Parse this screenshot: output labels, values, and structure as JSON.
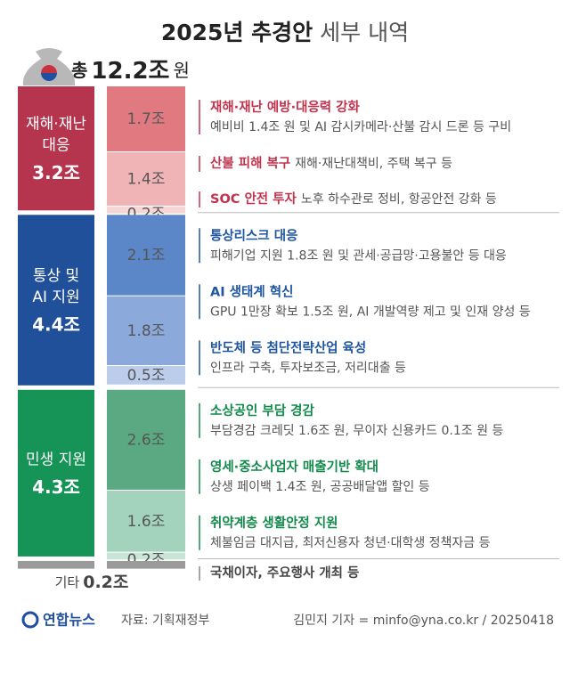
{
  "chart_data": {
    "type": "stacked_bar",
    "title": "2025년 추경안",
    "subtitle": "세부 내역",
    "total_prefix": "총",
    "total": 12.2,
    "total_label": "12.2조",
    "total_suffix": "원",
    "groups": [
      {
        "name_lines": [
          "재해·재난",
          "대응"
        ],
        "value": 3.2,
        "value_label": "3.2조",
        "color": "#b5354f",
        "text_color": "#c0334d",
        "items": [
          {
            "value": 1.7,
            "value_label": "1.7조",
            "color": "#e07a80",
            "title": "재해·재난 예방·대응력 강화",
            "detail": "예비비 1.4조 원 및 AI 감시카메라·산불 감시 드론 등 구비"
          },
          {
            "value": 1.4,
            "value_label": "1.4조",
            "color": "#f0b4b6",
            "title": "산불 피해 복구",
            "detail": "재해·재난대책비, 주택 복구 등"
          },
          {
            "value": 0.2,
            "value_label": "0.2조",
            "color": "#f7d6d6",
            "title": "SOC 안전 투자",
            "detail": "노후 하수관로 정비, 항공안전 강화 등"
          }
        ]
      },
      {
        "name_lines": [
          "통상 및",
          "AI 지원"
        ],
        "value": 4.4,
        "value_label": "4.4조",
        "color": "#21509a",
        "text_color": "#1f56a3",
        "items": [
          {
            "value": 2.1,
            "value_label": "2.1조",
            "color": "#5b86c8",
            "title": "통상리스크 대응",
            "detail": "피해기업 지원 1.8조 원 및 관세·공급망·고용불안 등 대응"
          },
          {
            "value": 1.8,
            "value_label": "1.8조",
            "color": "#8ca9dc",
            "title": "AI 생태계 혁신",
            "detail": "GPU 1만장 확보 1.5조 원, AI 개발역량 제고 및 인재 양성 등"
          },
          {
            "value": 0.5,
            "value_label": "0.5조",
            "color": "#bccdeb",
            "title": "반도체 등 첨단전략산업 육성",
            "detail": "인프라 구축, 투자보조금, 저리대출 등"
          }
        ]
      },
      {
        "name_lines": [
          "민생 지원"
        ],
        "value": 4.3,
        "value_label": "4.3조",
        "color": "#169457",
        "text_color": "#138a4c",
        "items": [
          {
            "value": 2.6,
            "value_label": "2.6조",
            "color": "#5aa983",
            "title": "소상공인 부담 경감",
            "detail": "부담경감 크레딧 1.6조 원, 무이자 신용카드 0.1조 원 등"
          },
          {
            "value": 1.6,
            "value_label": "1.6조",
            "color": "#a3d3bd",
            "title": "영세·중소사업자 매출기반 확대",
            "detail": "상생 페이백 1.4조 원, 공공배달앱 할인 등"
          },
          {
            "value": 0.2,
            "value_label": "0.2조",
            "color": "#c8e5d7",
            "title": "취약계층 생활안정 지원",
            "detail": "체불임금 대지급, 최저신용자 청년·대학생 정책자금 등"
          }
        ]
      }
    ],
    "other": {
      "name": "기타",
      "value": 0.2,
      "value_label": "0.2조",
      "color": "#9a9a9a",
      "detail": "국채이자, 주요행사 개최 등"
    },
    "footer": {
      "brand": "연합뉴스",
      "source": "자료: 기획재정부",
      "credit": "김민지 기자 = minfo@yna.co.kr / 20250418"
    }
  }
}
